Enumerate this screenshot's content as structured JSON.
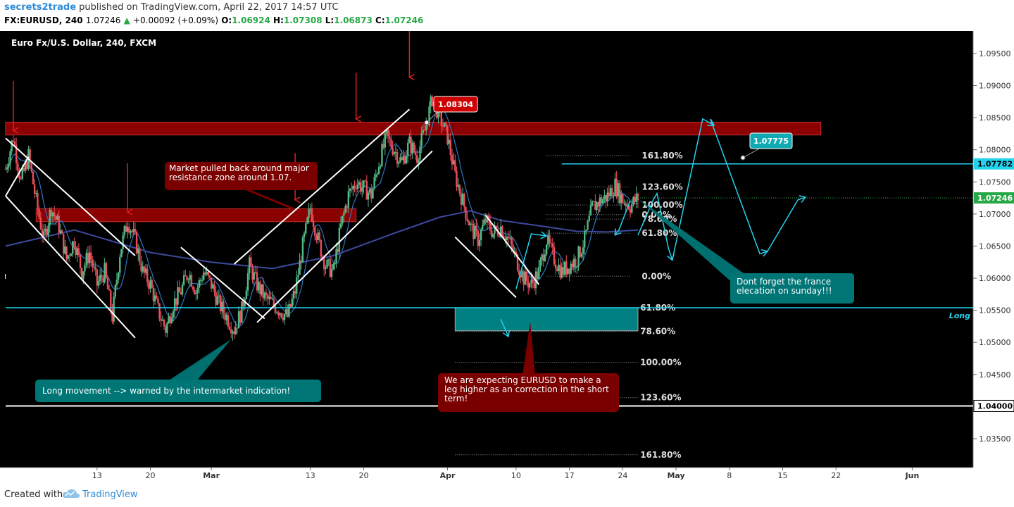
{
  "header": {
    "author": "secrets2trade",
    "published": "published on TradingView.com, April 22, 2017 14:57 UTC",
    "symbol": "FX:EURUSD, 240",
    "last": "1.07246",
    "change": "+0.00092 (+0.09%)",
    "o_label": "O:",
    "o": "1.06924",
    "h_label": "H:",
    "h": "1.07308",
    "l_label": "L:",
    "l": "1.06873",
    "c_label": "C:",
    "c": "1.07246"
  },
  "footer": {
    "created_with": "Created with",
    "brand": "TradingView"
  },
  "colors": {
    "background": "#000000",
    "up": "#53b987",
    "down": "#eb4d5c",
    "resistance": "#8b0000",
    "cyan": "#22d3ee",
    "ma_fast": "#1e5d99",
    "ma_slow": "#3d4a9e",
    "callout_teal": "#008080",
    "callout_red": "#7a0000"
  },
  "chart_data": {
    "type": "candlestick",
    "title": "Euro Fx/U.S. Dollar, 240, FXCM",
    "ylim": [
      1.0305,
      1.0985
    ],
    "y_ticks": [
      "1.09500",
      "1.09000",
      "1.08500",
      "1.08000",
      "1.07500",
      "1.07000",
      "1.06500",
      "1.06000",
      "1.05500",
      "1.05000",
      "1.04500",
      "1.04000",
      "1.03500"
    ],
    "y_tick_values": [
      1.095,
      1.09,
      1.085,
      1.08,
      1.075,
      1.07,
      1.065,
      1.06,
      1.055,
      1.05,
      1.045,
      1.04,
      1.035
    ],
    "x_ticks": [
      {
        "label": "13",
        "day": 13
      },
      {
        "label": "20",
        "day": 20
      },
      {
        "label": "Mar",
        "day": 28
      },
      {
        "label": "13",
        "day": 41
      },
      {
        "label": "20",
        "day": 48
      },
      {
        "label": "Apr",
        "day": 59
      },
      {
        "label": "10",
        "day": 68
      },
      {
        "label": "17",
        "day": 75
      },
      {
        "label": "24",
        "day": 82
      },
      {
        "label": "May",
        "day": 89
      },
      {
        "label": "8",
        "day": 96
      },
      {
        "label": "15",
        "day": 103
      },
      {
        "label": "22",
        "day": 110
      },
      {
        "label": "Jun",
        "day": 120
      }
    ],
    "x_range_days": [
      1,
      128
    ],
    "price_path": [
      [
        1,
        1.077
      ],
      [
        2,
        1.082
      ],
      [
        3,
        1.075
      ],
      [
        4,
        1.079
      ],
      [
        5,
        1.072
      ],
      [
        6,
        1.066
      ],
      [
        7,
        1.071
      ],
      [
        8,
        1.068
      ],
      [
        9,
        1.063
      ],
      [
        10,
        1.066
      ],
      [
        11,
        1.061
      ],
      [
        12,
        1.064
      ],
      [
        13,
        1.059
      ],
      [
        14,
        1.061
      ],
      [
        15,
        1.054
      ],
      [
        16,
        1.064
      ],
      [
        17,
        1.069
      ],
      [
        18,
        1.066
      ],
      [
        19,
        1.061
      ],
      [
        20,
        1.059
      ],
      [
        21,
        1.055
      ],
      [
        22,
        1.052
      ],
      [
        23,
        1.056
      ],
      [
        24,
        1.058
      ],
      [
        25,
        1.061
      ],
      [
        26,
        1.058
      ],
      [
        27,
        1.061
      ],
      [
        28,
        1.059
      ],
      [
        29,
        1.056
      ],
      [
        30,
        1.054
      ],
      [
        31,
        1.052
      ],
      [
        32,
        1.055
      ],
      [
        33,
        1.062
      ],
      [
        34,
        1.059
      ],
      [
        35,
        1.057
      ],
      [
        36,
        1.056
      ],
      [
        37,
        1.055
      ],
      [
        38,
        1.054
      ],
      [
        39,
        1.058
      ],
      [
        40,
        1.065
      ],
      [
        41,
        1.071
      ],
      [
        42,
        1.066
      ],
      [
        43,
        1.062
      ],
      [
        44,
        1.061
      ],
      [
        45,
        1.068
      ],
      [
        46,
        1.073
      ],
      [
        47,
        1.075
      ],
      [
        48,
        1.074
      ],
      [
        49,
        1.073
      ],
      [
        50,
        1.078
      ],
      [
        51,
        1.082
      ],
      [
        52,
        1.08
      ],
      [
        53,
        1.078
      ],
      [
        54,
        1.081
      ],
      [
        55,
        1.079
      ],
      [
        56,
        1.083
      ],
      [
        57,
        1.088
      ],
      [
        58,
        1.085
      ],
      [
        59,
        1.082
      ],
      [
        60,
        1.076
      ],
      [
        61,
        1.072
      ],
      [
        62,
        1.068
      ],
      [
        63,
        1.066
      ],
      [
        64,
        1.069
      ],
      [
        65,
        1.067
      ],
      [
        66,
        1.068
      ],
      [
        67,
        1.066
      ],
      [
        68,
        1.063
      ],
      [
        69,
        1.06
      ],
      [
        70,
        1.059
      ],
      [
        71,
        1.061
      ],
      [
        72,
        1.066
      ],
      [
        73,
        1.063
      ],
      [
        74,
        1.061
      ],
      [
        75,
        1.062
      ],
      [
        76,
        1.063
      ],
      [
        77,
        1.066
      ],
      [
        78,
        1.071
      ],
      [
        79,
        1.072
      ],
      [
        80,
        1.0728
      ],
      [
        81,
        1.0745
      ],
      [
        82,
        1.0722
      ],
      [
        83,
        1.0713
      ],
      [
        84,
        1.0725
      ]
    ],
    "moving_average_slow": [
      [
        1,
        1.065
      ],
      [
        10,
        1.0675
      ],
      [
        20,
        1.064
      ],
      [
        28,
        1.0625
      ],
      [
        36,
        1.0615
      ],
      [
        44,
        1.0635
      ],
      [
        52,
        1.067
      ],
      [
        58,
        1.0695
      ],
      [
        62,
        1.0705
      ],
      [
        66,
        1.069
      ],
      [
        72,
        1.068
      ],
      [
        76,
        1.0673
      ],
      [
        80,
        1.0672
      ],
      [
        84,
        1.0675
      ]
    ],
    "zones": [
      {
        "name": "resistance-upper",
        "from_day": 1,
        "to_day": 108,
        "y_low": 1.0823,
        "y_high": 1.0843
      },
      {
        "name": "resistance-mid",
        "from_day": 5,
        "to_day": 47,
        "y_low": 1.0688,
        "y_high": 1.0708
      },
      {
        "name": "long-zone",
        "from_day": 60,
        "to_day": 84,
        "y_low": 1.0518,
        "y_high": 1.0554
      }
    ],
    "horizontal_lines": [
      {
        "name": "cyan-1.07775",
        "y": 1.0778,
        "from_day": 74,
        "to_day": 128,
        "color": "cyan"
      },
      {
        "name": "long-line",
        "y": 1.0554,
        "from_day": 1,
        "to_day": 128,
        "color": "cyan"
      },
      {
        "name": "white-1.04",
        "y": 1.0401,
        "from_day": 1,
        "to_day": 128,
        "color": "white"
      }
    ],
    "channels": [
      [
        [
          1,
          1.0818
        ],
        [
          18,
          1.0635
        ]
      ],
      [
        [
          1,
          1.0728
        ],
        [
          18,
          1.0507
        ]
      ],
      [
        [
          1,
          1.0728
        ],
        [
          4,
          1.0789
        ]
      ],
      [
        [
          24,
          1.0648
        ],
        [
          35,
          1.0537
        ]
      ],
      [
        [
          31,
          1.0622
        ],
        [
          54,
          1.0863
        ]
      ],
      [
        [
          34,
          1.0531
        ],
        [
          57,
          1.0798
        ]
      ],
      [
        [
          60,
          1.0664
        ],
        [
          68,
          1.057
        ]
      ],
      [
        [
          64,
          1.0698
        ],
        [
          71,
          1.059
        ]
      ]
    ],
    "fib_upper": [
      {
        "label": "161.80%",
        "y": 1.0791
      },
      {
        "label": "123.60%",
        "y": 1.0742
      },
      {
        "label": "100.00%",
        "y": 1.0714
      },
      {
        "label": "0.00%",
        "y": 1.0699
      },
      {
        "label": "78.60%",
        "y": 1.0692
      },
      {
        "label": "61.80%",
        "y": 1.067
      },
      {
        "label": "0.00%",
        "y": 1.0603
      }
    ],
    "fib_lower": [
      {
        "label": "61.80%",
        "y": 1.0554
      },
      {
        "label": "78.60%",
        "y": 1.0517
      },
      {
        "label": "100.00%",
        "y": 1.0469
      },
      {
        "label": "123.60%",
        "y": 1.0414
      },
      {
        "label": "161.80%",
        "y": 1.0325
      }
    ],
    "red_arrows": [
      {
        "day": 2,
        "y_from": 1.0907,
        "y_to": 1.083
      },
      {
        "day": 17,
        "y_from": 1.0779,
        "y_to": 1.0703
      },
      {
        "day": 39,
        "y_from": 1.0795,
        "y_to": 1.0722
      },
      {
        "day": 47,
        "y_from": 1.092,
        "y_to": 1.0848
      },
      {
        "day": 54,
        "y_from": 1.0985,
        "y_to": 1.0913
      }
    ],
    "cyan_projection": [
      [
        [
          68,
          1.0583
        ],
        [
          70,
          1.0669
        ],
        [
          72,
          1.0666
        ]
      ],
      [
        [
          66,
          1.0536
        ],
        [
          67,
          1.0509
        ]
      ],
      [
        [
          84,
          1.0667
        ],
        [
          86,
          1.0722
        ],
        [
          86.5,
          1.0732
        ],
        [
          88,
          1.0647
        ],
        [
          88.5,
          1.0628
        ]
      ],
      [
        [
          88.5,
          1.0628
        ],
        [
          92.5,
          1.0848
        ],
        [
          94,
          1.0838
        ]
      ],
      [
        [
          93.5,
          1.0848
        ],
        [
          100,
          1.0638
        ],
        [
          101,
          1.0642
        ]
      ],
      [
        [
          101,
          1.0642
        ],
        [
          105,
          1.0722
        ],
        [
          106,
          1.0726
        ]
      ],
      [
        [
          83,
          1.0721
        ],
        [
          81.5,
          1.0675
        ],
        [
          81,
          1.0667
        ]
      ]
    ],
    "price_tags": [
      {
        "label": "1.09500",
        "y": 1.095
      },
      {
        "label": "1.07782",
        "y": 1.0778,
        "color": "cyan"
      },
      {
        "label": "1.07246",
        "y": 1.0725,
        "color": "green"
      },
      {
        "label": "1.04000",
        "y": 1.0401,
        "color": "white"
      }
    ],
    "callouts": {
      "pulled_back": "Market pulled back around major resistance zone around 1.07.",
      "long_movement": "Long movement --> warned by the intermarket indication!",
      "expecting": "We are expecting EURUSD to make a leg higher as an correction in the short term!",
      "france": "Dont forget the france elecation on sunday!!!",
      "tag_1_08304": "1.08304",
      "tag_1_07775": "1.07775",
      "long_label": "Long"
    }
  }
}
